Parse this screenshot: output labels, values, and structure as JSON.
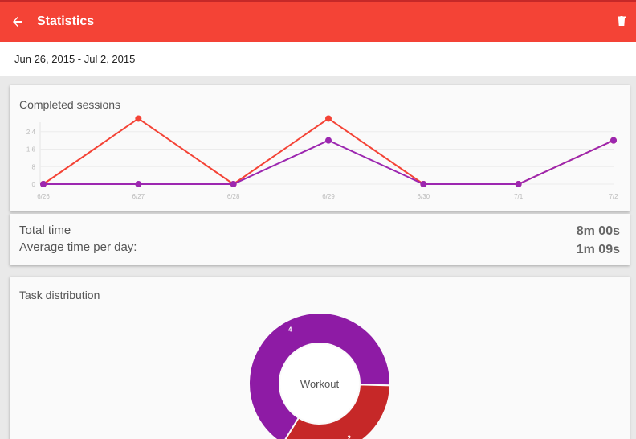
{
  "appbar": {
    "title": "Statistics",
    "back_icon": "arrow-left-icon",
    "delete_icon": "trash-icon",
    "color": "#f44336"
  },
  "date_range": {
    "start": "Jun 26, 2015",
    "separator": " - ",
    "end": "Jul 2, 2015"
  },
  "sessions_card": {
    "title": "Completed sessions"
  },
  "chart_data": {
    "type": "line",
    "title": "Completed sessions",
    "categories": [
      "6/26",
      "6/27",
      "6/28",
      "6/29",
      "6/30",
      "7/1",
      "7/2"
    ],
    "y_ticks": [
      "0",
      ".8",
      "1.6",
      "2.4"
    ],
    "ylim": [
      0,
      3.2
    ],
    "grid": true,
    "series": [
      {
        "color": "#f44336",
        "values": [
          0,
          3,
          0,
          3,
          0,
          0,
          2
        ]
      },
      {
        "color": "#9c27b0",
        "values": [
          0,
          0,
          0,
          2,
          0,
          0,
          2
        ]
      }
    ]
  },
  "time_card": {
    "total_label": "Total time",
    "total_value": "8m 00s",
    "avg_label": "Average time per day:",
    "avg_value": "1m 09s"
  },
  "distribution_card": {
    "title": "Task distribution",
    "center_label": "Workout",
    "slices": [
      {
        "label": "4",
        "value": 4,
        "color": "#8e1ba5"
      },
      {
        "label": "2",
        "value": 2,
        "color": "#c62828"
      }
    ]
  }
}
